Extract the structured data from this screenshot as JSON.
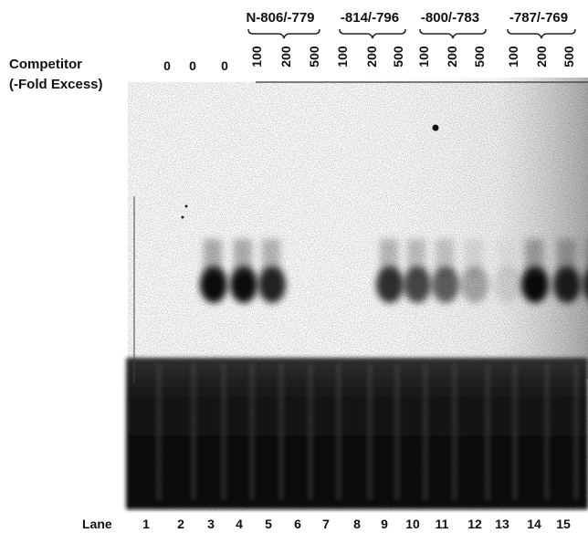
{
  "labels": {
    "competitor": "Competitor",
    "fold_excess": "(-Fold Excess)",
    "lane": "Lane"
  },
  "groups": [
    "N-806/-779",
    "-814/-796",
    "-800/-783",
    "-787/-769"
  ],
  "amounts": [
    "0",
    "0",
    "0",
    "100",
    "200",
    "500",
    "100",
    "200",
    "500",
    "100",
    "200",
    "500",
    "100",
    "200",
    "500"
  ],
  "lanes": [
    "1",
    "2",
    "3",
    "4",
    "5",
    "6",
    "7",
    "8",
    "9",
    "10",
    "11",
    "12",
    "13",
    "14",
    "15"
  ]
}
